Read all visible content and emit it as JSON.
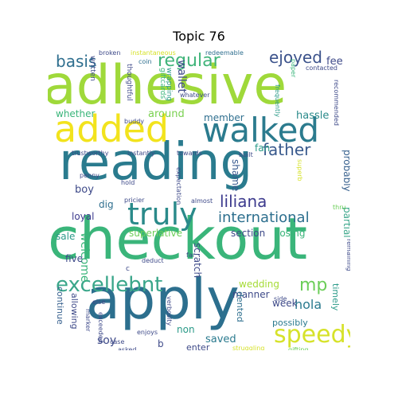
{
  "title": "Topic 76",
  "words": [
    {
      "text": "adhesive",
      "color": "#9fd93a"
    },
    {
      "text": "reading",
      "color": "#2a7b8e"
    },
    {
      "text": "checkout",
      "color": "#3ab57a"
    },
    {
      "text": "apply",
      "color": "#2c6f8e"
    },
    {
      "text": "added",
      "color": "#f2e31d"
    },
    {
      "text": "walked",
      "color": "#2b7b8e"
    },
    {
      "text": "truly",
      "color": "#2a8a8a"
    },
    {
      "text": "speedy",
      "color": "#d6e22a"
    },
    {
      "text": "excellebnt",
      "color": "#3aa68a"
    },
    {
      "text": "international",
      "color": "#2d6f8e"
    },
    {
      "text": "regular",
      "color": "#40b47a"
    },
    {
      "text": "basis",
      "color": "#2f6f8f"
    },
    {
      "text": "ejoyed",
      "color": "#3b528b"
    },
    {
      "text": "father",
      "color": "#38598c"
    },
    {
      "text": "liliana",
      "color": "#3d3b8e"
    },
    {
      "text": "mp",
      "color": "#6cce59"
    },
    {
      "text": "hola",
      "color": "#2a7a8e"
    },
    {
      "text": "welcome",
      "color": "#3ab57a"
    },
    {
      "text": "wallet",
      "color": "#3e4a89"
    },
    {
      "text": "fee",
      "color": "#3e4a89"
    },
    {
      "text": "whether",
      "color": "#3ab57a"
    },
    {
      "text": "around",
      "color": "#7ad151"
    },
    {
      "text": "member",
      "color": "#2f6f8f"
    },
    {
      "text": "hassle",
      "color": "#2a8a8a"
    },
    {
      "text": "fan",
      "color": "#2a9a88"
    },
    {
      "text": "shame",
      "color": "#34568c"
    },
    {
      "text": "probably",
      "color": "#355f8d"
    },
    {
      "text": "partial",
      "color": "#3aa68a"
    },
    {
      "text": "boy",
      "color": "#3e4a89"
    },
    {
      "text": "dig",
      "color": "#2f6f8f"
    },
    {
      "text": "loyal",
      "color": "#3d3b8e"
    },
    {
      "text": "sale",
      "color": "#2a9a88"
    },
    {
      "text": "superlative",
      "color": "#6cce59"
    },
    {
      "text": "section",
      "color": "#3e4a89"
    },
    {
      "text": "losing",
      "color": "#3ab57a"
    },
    {
      "text": "scratch",
      "color": "#3e4a89"
    },
    {
      "text": "five",
      "color": "#3e4a89"
    },
    {
      "text": "soy",
      "color": "#3e4a89"
    },
    {
      "text": "wedding",
      "color": "#a5db36"
    },
    {
      "text": "manner",
      "color": "#3e4a89"
    },
    {
      "text": "week",
      "color": "#3e4a89"
    },
    {
      "text": "possibly",
      "color": "#2a7a8e"
    },
    {
      "text": "timely",
      "color": "#2a9a88"
    },
    {
      "text": "continue",
      "color": "#355f8d"
    },
    {
      "text": "allowing",
      "color": "#3e4a89"
    },
    {
      "text": "dented",
      "color": "#2f6f8f"
    },
    {
      "text": "saved",
      "color": "#2a7a8e"
    },
    {
      "text": "non",
      "color": "#2a9a88"
    },
    {
      "text": "enter",
      "color": "#3e4a89"
    },
    {
      "text": "b",
      "color": "#3e4a89"
    },
    {
      "text": "written",
      "color": "#3e4a89"
    },
    {
      "text": "thoughtful",
      "color": "#3e4a89"
    },
    {
      "text": "giftcards",
      "color": "#3ab57a"
    },
    {
      "text": "wrapping",
      "color": "#2a9a88"
    },
    {
      "text": "coin",
      "color": "#2f6f8f"
    },
    {
      "text": "broken",
      "color": "#3e4a89"
    },
    {
      "text": "instantaneous",
      "color": "#d6e22a"
    },
    {
      "text": "redeemable",
      "color": "#2f6f8f"
    },
    {
      "text": "whatever",
      "color": "#3e4a89"
    },
    {
      "text": "contacted",
      "color": "#3e4a89"
    },
    {
      "text": "paper",
      "color": "#3ab57a"
    },
    {
      "text": "recommended",
      "color": "#3e4a89"
    },
    {
      "text": "frequently",
      "color": "#2a9a88"
    },
    {
      "text": "buddy",
      "color": "#3e4a89"
    },
    {
      "text": "trustworthy",
      "color": "#3e4a89"
    },
    {
      "text": "instantly",
      "color": "#3e4a89"
    },
    {
      "text": "towards",
      "color": "#3e4a89"
    },
    {
      "text": "built",
      "color": "#3e4a89"
    },
    {
      "text": "penny",
      "color": "#3e4a89"
    },
    {
      "text": "hold",
      "color": "#3e4a89"
    },
    {
      "text": "pricier",
      "color": "#3e4a89"
    },
    {
      "text": "almost",
      "color": "#3e4a89"
    },
    {
      "text": "expectation",
      "color": "#3e4a89"
    },
    {
      "text": "superb",
      "color": "#d6e22a"
    },
    {
      "text": "thru",
      "color": "#6cce59"
    },
    {
      "text": "deduct",
      "color": "#3e4a89"
    },
    {
      "text": "far",
      "color": "#3e4a89"
    },
    {
      "text": "c",
      "color": "#3e4a89"
    },
    {
      "text": "remaining",
      "color": "#3e4a89"
    },
    {
      "text": "else",
      "color": "#3e4a89"
    },
    {
      "text": "marker",
      "color": "#3e4a89"
    },
    {
      "text": "exceeded",
      "color": "#3e4a89"
    },
    {
      "text": "enjoys",
      "color": "#3e4a89"
    },
    {
      "text": "verbosity",
      "color": "#3e4a89"
    },
    {
      "text": "side",
      "color": "#3e4a89"
    },
    {
      "text": "case",
      "color": "#3e4a89"
    },
    {
      "text": "asked",
      "color": "#3e4a89"
    },
    {
      "text": "struggling",
      "color": "#d6e22a"
    },
    {
      "text": "gifting",
      "color": "#6cce59"
    }
  ]
}
